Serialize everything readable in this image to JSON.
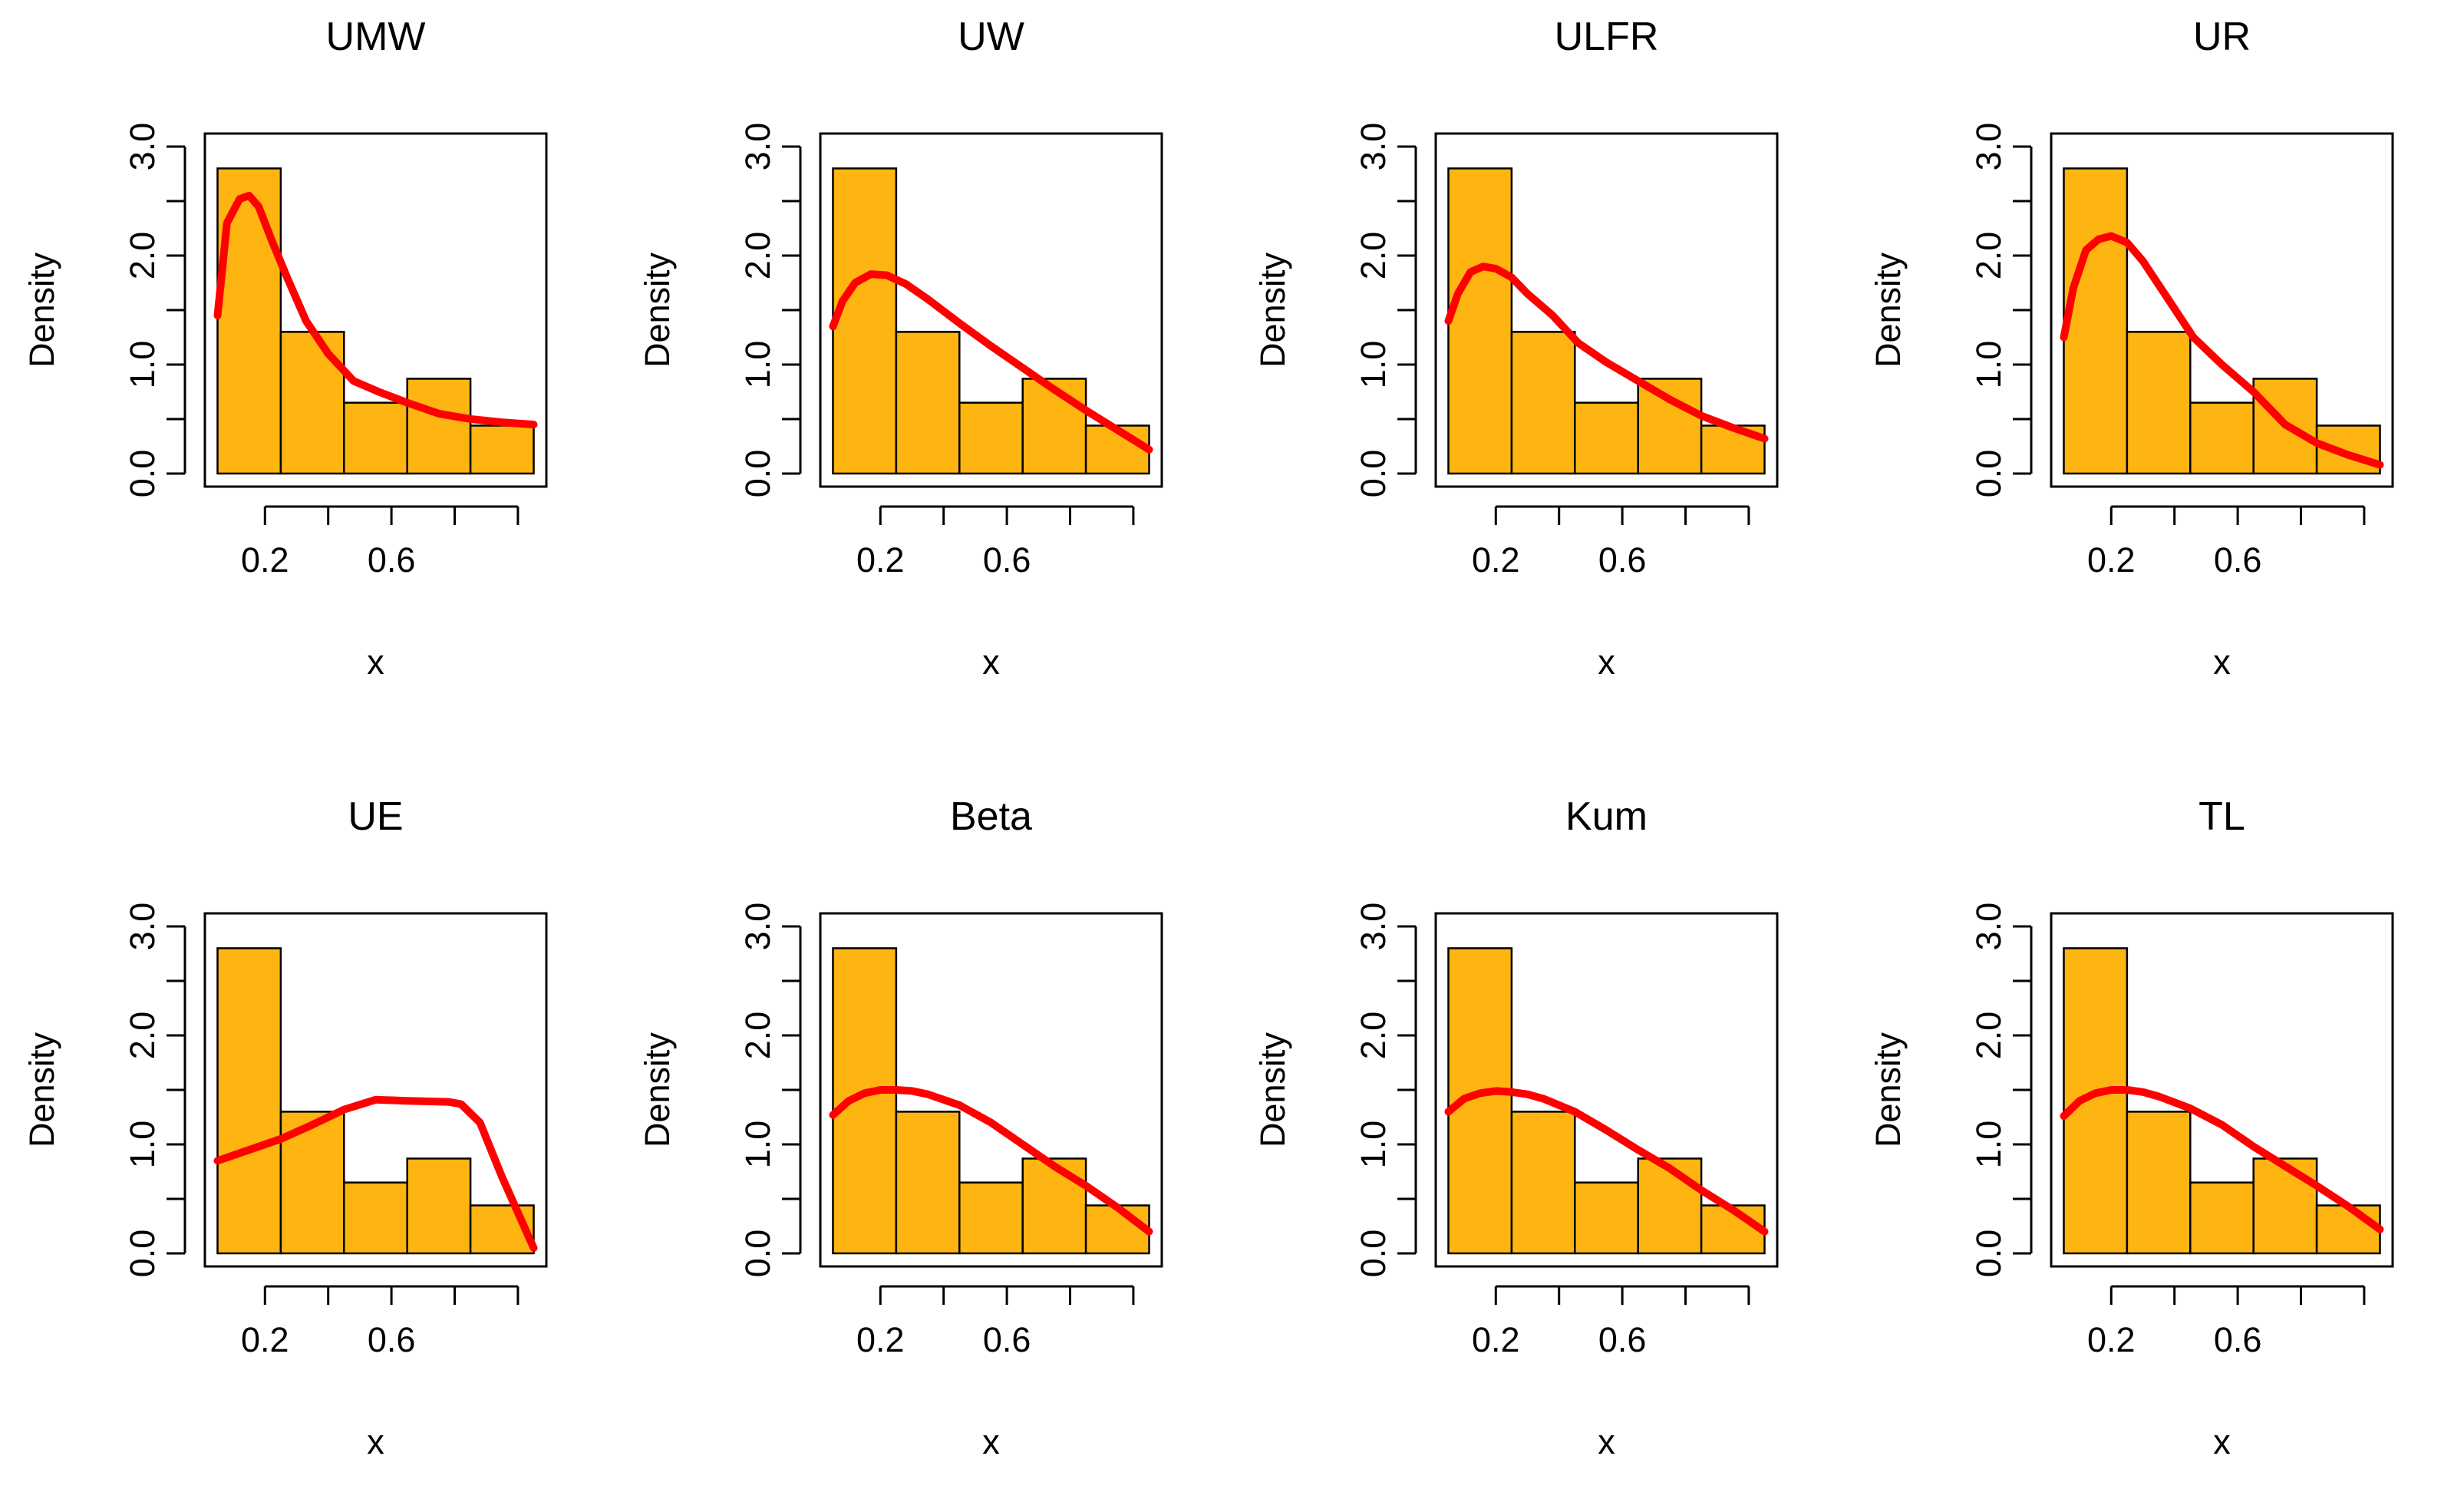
{
  "figure": {
    "background": "#ffffff",
    "bar_fill": "#FFB511",
    "curve_color": "#FF0000"
  },
  "histogram": {
    "bins": [
      0.05,
      0.25,
      0.45,
      0.65,
      0.85,
      1.05
    ],
    "densities": [
      2.8,
      1.3,
      0.65,
      0.87,
      0.44
    ]
  },
  "chart_data": [
    {
      "type": "bar",
      "title": "UMW",
      "xlabel": "x",
      "ylabel": "Density",
      "xlim": [
        0.05,
        1.05
      ],
      "ylim": [
        0,
        3
      ],
      "xticks": [
        0.2,
        0.4,
        0.6,
        0.8,
        1.0
      ],
      "xtick_labels": [
        "0.2",
        "",
        "0.6",
        "",
        ""
      ],
      "yticks": [
        0,
        0.5,
        1,
        1.5,
        2,
        2.5,
        3
      ],
      "ytick_labels": [
        "0.0",
        "",
        "1.0",
        "",
        "2.0",
        "",
        "3.0"
      ],
      "curve": {
        "x": [
          0.05,
          0.08,
          0.12,
          0.15,
          0.18,
          0.22,
          0.27,
          0.33,
          0.4,
          0.48,
          0.56,
          0.65,
          0.75,
          0.85,
          0.95,
          1.05
        ],
        "y": [
          1.45,
          2.3,
          2.52,
          2.55,
          2.45,
          2.15,
          1.8,
          1.4,
          1.1,
          0.85,
          0.75,
          0.65,
          0.55,
          0.5,
          0.47,
          0.45
        ]
      }
    },
    {
      "type": "bar",
      "title": "UW",
      "xlabel": "x",
      "ylabel": "Density",
      "xlim": [
        0.05,
        1.05
      ],
      "ylim": [
        0,
        3
      ],
      "xticks": [
        0.2,
        0.4,
        0.6,
        0.8,
        1.0
      ],
      "xtick_labels": [
        "0.2",
        "",
        "0.6",
        "",
        ""
      ],
      "yticks": [
        0,
        0.5,
        1,
        1.5,
        2,
        2.5,
        3
      ],
      "ytick_labels": [
        "0.0",
        "",
        "1.0",
        "",
        "2.0",
        "",
        "3.0"
      ],
      "curve": {
        "x": [
          0.05,
          0.08,
          0.12,
          0.17,
          0.22,
          0.28,
          0.35,
          0.45,
          0.55,
          0.65,
          0.75,
          0.85,
          0.95,
          1.05
        ],
        "y": [
          1.35,
          1.58,
          1.75,
          1.83,
          1.82,
          1.74,
          1.6,
          1.38,
          1.17,
          0.97,
          0.77,
          0.58,
          0.4,
          0.22
        ]
      }
    },
    {
      "type": "bar",
      "title": "ULFR",
      "xlabel": "x",
      "ylabel": "Density",
      "xlim": [
        0.05,
        1.05
      ],
      "ylim": [
        0,
        3
      ],
      "xticks": [
        0.2,
        0.4,
        0.6,
        0.8,
        1.0
      ],
      "xtick_labels": [
        "0.2",
        "",
        "0.6",
        "",
        ""
      ],
      "yticks": [
        0,
        0.5,
        1,
        1.5,
        2,
        2.5,
        3
      ],
      "ytick_labels": [
        "0.0",
        "",
        "1.0",
        "",
        "2.0",
        "",
        "3.0"
      ],
      "curve": {
        "x": [
          0.05,
          0.08,
          0.12,
          0.16,
          0.2,
          0.25,
          0.3,
          0.38,
          0.46,
          0.55,
          0.65,
          0.75,
          0.85,
          0.95,
          1.05
        ],
        "y": [
          1.4,
          1.65,
          1.85,
          1.9,
          1.88,
          1.8,
          1.65,
          1.45,
          1.2,
          1.02,
          0.85,
          0.68,
          0.53,
          0.42,
          0.32
        ]
      }
    },
    {
      "type": "bar",
      "title": "UR",
      "xlabel": "x",
      "ylabel": "Density",
      "xlim": [
        0.05,
        1.05
      ],
      "ylim": [
        0,
        3
      ],
      "xticks": [
        0.2,
        0.4,
        0.6,
        0.8,
        1.0
      ],
      "xtick_labels": [
        "0.2",
        "",
        "0.6",
        "",
        ""
      ],
      "yticks": [
        0,
        0.5,
        1,
        1.5,
        2,
        2.5,
        3
      ],
      "ytick_labels": [
        "0.0",
        "",
        "1.0",
        "",
        "2.0",
        "",
        "3.0"
      ],
      "curve": {
        "x": [
          0.05,
          0.08,
          0.12,
          0.16,
          0.2,
          0.25,
          0.3,
          0.38,
          0.46,
          0.55,
          0.65,
          0.75,
          0.85,
          0.95,
          1.05
        ],
        "y": [
          1.25,
          1.7,
          2.05,
          2.15,
          2.18,
          2.12,
          1.95,
          1.6,
          1.25,
          1.0,
          0.75,
          0.45,
          0.28,
          0.17,
          0.08
        ]
      }
    },
    {
      "type": "bar",
      "title": "UE",
      "xlabel": "x",
      "ylabel": "Density",
      "xlim": [
        0.05,
        1.05
      ],
      "ylim": [
        0,
        3
      ],
      "xticks": [
        0.2,
        0.4,
        0.6,
        0.8,
        1.0
      ],
      "xtick_labels": [
        "0.2",
        "",
        "0.6",
        "",
        ""
      ],
      "yticks": [
        0,
        0.5,
        1,
        1.5,
        2,
        2.5,
        3
      ],
      "ytick_labels": [
        "0.0",
        "",
        "1.0",
        "",
        "2.0",
        "",
        "3.0"
      ],
      "curve": {
        "x": [
          0.05,
          0.15,
          0.25,
          0.35,
          0.45,
          0.55,
          0.65,
          0.78,
          0.82,
          0.88,
          0.95,
          1.05
        ],
        "y": [
          0.85,
          0.95,
          1.05,
          1.18,
          1.32,
          1.41,
          1.4,
          1.39,
          1.37,
          1.2,
          0.7,
          0.05
        ]
      }
    },
    {
      "type": "bar",
      "title": "Beta",
      "xlabel": "x",
      "ylabel": "Density",
      "xlim": [
        0.05,
        1.05
      ],
      "ylim": [
        0,
        3
      ],
      "xticks": [
        0.2,
        0.4,
        0.6,
        0.8,
        1.0
      ],
      "xtick_labels": [
        "0.2",
        "",
        "0.6",
        "",
        ""
      ],
      "yticks": [
        0,
        0.5,
        1,
        1.5,
        2,
        2.5,
        3
      ],
      "ytick_labels": [
        "0.0",
        "",
        "1.0",
        "",
        "2.0",
        "",
        "3.0"
      ],
      "curve": {
        "x": [
          0.05,
          0.1,
          0.15,
          0.2,
          0.25,
          0.3,
          0.35,
          0.45,
          0.55,
          0.65,
          0.75,
          0.85,
          0.95,
          1.05
        ],
        "y": [
          1.27,
          1.4,
          1.47,
          1.5,
          1.5,
          1.49,
          1.46,
          1.36,
          1.2,
          1.0,
          0.8,
          0.62,
          0.42,
          0.2
        ]
      }
    },
    {
      "type": "bar",
      "title": "Kum",
      "xlabel": "x",
      "ylabel": "Density",
      "xlim": [
        0.05,
        1.05
      ],
      "ylim": [
        0,
        3
      ],
      "xticks": [
        0.2,
        0.4,
        0.6,
        0.8,
        1.0
      ],
      "xtick_labels": [
        "0.2",
        "",
        "0.6",
        "",
        ""
      ],
      "yticks": [
        0,
        0.5,
        1,
        1.5,
        2,
        2.5,
        3
      ],
      "ytick_labels": [
        "0.0",
        "",
        "1.0",
        "",
        "2.0",
        "",
        "3.0"
      ],
      "curve": {
        "x": [
          0.05,
          0.1,
          0.15,
          0.2,
          0.25,
          0.3,
          0.35,
          0.45,
          0.55,
          0.65,
          0.75,
          0.85,
          0.95,
          1.05
        ],
        "y": [
          1.3,
          1.42,
          1.47,
          1.49,
          1.48,
          1.46,
          1.42,
          1.3,
          1.13,
          0.95,
          0.78,
          0.58,
          0.4,
          0.2
        ]
      }
    },
    {
      "type": "bar",
      "title": "TL",
      "xlabel": "x",
      "ylabel": "Density",
      "xlim": [
        0.05,
        1.05
      ],
      "ylim": [
        0,
        3
      ],
      "xticks": [
        0.2,
        0.4,
        0.6,
        0.8,
        1.0
      ],
      "xtick_labels": [
        "0.2",
        "",
        "0.6",
        "",
        ""
      ],
      "yticks": [
        0,
        0.5,
        1,
        1.5,
        2,
        2.5,
        3
      ],
      "ytick_labels": [
        "0.0",
        "",
        "1.0",
        "",
        "2.0",
        "",
        "3.0"
      ],
      "curve": {
        "x": [
          0.05,
          0.1,
          0.15,
          0.2,
          0.25,
          0.3,
          0.35,
          0.45,
          0.55,
          0.65,
          0.75,
          0.85,
          0.95,
          1.05
        ],
        "y": [
          1.26,
          1.4,
          1.47,
          1.5,
          1.5,
          1.48,
          1.44,
          1.33,
          1.18,
          0.98,
          0.8,
          0.62,
          0.43,
          0.22
        ]
      }
    }
  ]
}
